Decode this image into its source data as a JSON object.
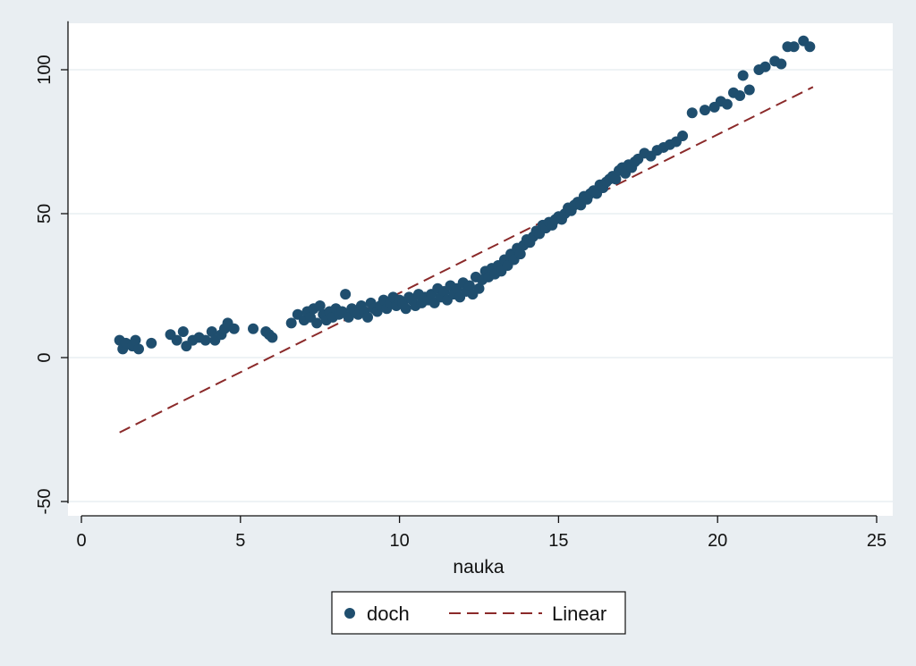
{
  "chart_data": {
    "type": "scatter",
    "title": "",
    "xlabel": "nauka",
    "ylabel": "",
    "xlim": [
      0,
      25
    ],
    "ylim": [
      -50,
      115
    ],
    "x_ticks": [
      0,
      5,
      10,
      15,
      20,
      25
    ],
    "y_ticks": [
      -50,
      0,
      50,
      100
    ],
    "x_tick_labels": [
      "0",
      "5",
      "10",
      "15",
      "20",
      "25"
    ],
    "y_tick_labels": [
      "-50",
      "0",
      "50",
      "100"
    ],
    "grid": true,
    "legend_position": "bottom",
    "colors": {
      "points": "#1f4e6e",
      "fit": "#8b2a2a",
      "background": "#e9eef2",
      "plot": "#ffffff",
      "grid": "#e4ecef"
    },
    "series": [
      {
        "name": "doch",
        "kind": "scatter",
        "points": [
          [
            1.2,
            6
          ],
          [
            1.3,
            3
          ],
          [
            1.4,
            5
          ],
          [
            1.6,
            4
          ],
          [
            1.7,
            6
          ],
          [
            1.8,
            3
          ],
          [
            2.2,
            5
          ],
          [
            2.8,
            8
          ],
          [
            3.0,
            6
          ],
          [
            3.2,
            9
          ],
          [
            3.3,
            4
          ],
          [
            3.5,
            6
          ],
          [
            3.7,
            7
          ],
          [
            3.9,
            6
          ],
          [
            4.1,
            9
          ],
          [
            4.2,
            6
          ],
          [
            4.4,
            8
          ],
          [
            4.5,
            10
          ],
          [
            4.6,
            12
          ],
          [
            4.8,
            10
          ],
          [
            5.4,
            10
          ],
          [
            5.8,
            9
          ],
          [
            5.9,
            8
          ],
          [
            6.0,
            7
          ],
          [
            6.6,
            12
          ],
          [
            6.8,
            15
          ],
          [
            7.0,
            13
          ],
          [
            7.1,
            16
          ],
          [
            7.2,
            14
          ],
          [
            7.3,
            17
          ],
          [
            7.4,
            12
          ],
          [
            7.5,
            18
          ],
          [
            7.6,
            15
          ],
          [
            7.7,
            13
          ],
          [
            7.8,
            16
          ],
          [
            7.9,
            14
          ],
          [
            8.0,
            17
          ],
          [
            8.1,
            15
          ],
          [
            8.2,
            16
          ],
          [
            8.3,
            22
          ],
          [
            8.4,
            14
          ],
          [
            8.5,
            17
          ],
          [
            8.6,
            16
          ],
          [
            8.7,
            15
          ],
          [
            8.8,
            18
          ],
          [
            8.9,
            16
          ],
          [
            9.0,
            14
          ],
          [
            9.1,
            19
          ],
          [
            9.2,
            17
          ],
          [
            9.3,
            16
          ],
          [
            9.4,
            18
          ],
          [
            9.5,
            20
          ],
          [
            9.6,
            17
          ],
          [
            9.7,
            19
          ],
          [
            9.8,
            21
          ],
          [
            9.9,
            18
          ],
          [
            10.0,
            20
          ],
          [
            10.1,
            19
          ],
          [
            10.2,
            17
          ],
          [
            10.3,
            21
          ],
          [
            10.4,
            20
          ],
          [
            10.5,
            18
          ],
          [
            10.6,
            22
          ],
          [
            10.7,
            19
          ],
          [
            10.8,
            21
          ],
          [
            10.9,
            20
          ],
          [
            11.0,
            22
          ],
          [
            11.1,
            19
          ],
          [
            11.2,
            24
          ],
          [
            11.3,
            21
          ],
          [
            11.4,
            23
          ],
          [
            11.5,
            20
          ],
          [
            11.6,
            25
          ],
          [
            11.7,
            22
          ],
          [
            11.8,
            24
          ],
          [
            11.9,
            21
          ],
          [
            12.0,
            26
          ],
          [
            12.1,
            23
          ],
          [
            12.2,
            25
          ],
          [
            12.3,
            22
          ],
          [
            12.4,
            28
          ],
          [
            12.5,
            24
          ],
          [
            12.6,
            27
          ],
          [
            12.7,
            30
          ],
          [
            12.8,
            28
          ],
          [
            12.9,
            31
          ],
          [
            13.0,
            29
          ],
          [
            13.1,
            32
          ],
          [
            13.2,
            30
          ],
          [
            13.3,
            34
          ],
          [
            13.4,
            32
          ],
          [
            13.5,
            36
          ],
          [
            13.6,
            34
          ],
          [
            13.7,
            38
          ],
          [
            13.8,
            36
          ],
          [
            13.9,
            39
          ],
          [
            14.0,
            41
          ],
          [
            14.1,
            40
          ],
          [
            14.2,
            42
          ],
          [
            14.3,
            44
          ],
          [
            14.4,
            43
          ],
          [
            14.5,
            46
          ],
          [
            14.6,
            45
          ],
          [
            14.7,
            47
          ],
          [
            14.8,
            46
          ],
          [
            14.9,
            48
          ],
          [
            15.0,
            49
          ],
          [
            15.1,
            48
          ],
          [
            15.2,
            50
          ],
          [
            15.3,
            52
          ],
          [
            15.4,
            51
          ],
          [
            15.5,
            53
          ],
          [
            15.6,
            54
          ],
          [
            15.7,
            53
          ],
          [
            15.8,
            56
          ],
          [
            15.9,
            55
          ],
          [
            16.0,
            57
          ],
          [
            16.1,
            58
          ],
          [
            16.2,
            57
          ],
          [
            16.3,
            60
          ],
          [
            16.4,
            59
          ],
          [
            16.5,
            61
          ],
          [
            16.6,
            62
          ],
          [
            16.7,
            63
          ],
          [
            16.8,
            62
          ],
          [
            16.9,
            65
          ],
          [
            17.0,
            66
          ],
          [
            17.1,
            64
          ],
          [
            17.2,
            67
          ],
          [
            17.3,
            66
          ],
          [
            17.4,
            68
          ],
          [
            17.5,
            69
          ],
          [
            17.7,
            71
          ],
          [
            17.9,
            70
          ],
          [
            18.1,
            72
          ],
          [
            18.3,
            73
          ],
          [
            18.5,
            74
          ],
          [
            18.7,
            75
          ],
          [
            18.9,
            77
          ],
          [
            19.2,
            85
          ],
          [
            19.6,
            86
          ],
          [
            19.9,
            87
          ],
          [
            20.1,
            89
          ],
          [
            20.3,
            88
          ],
          [
            20.5,
            92
          ],
          [
            20.7,
            91
          ],
          [
            20.8,
            98
          ],
          [
            21.0,
            93
          ],
          [
            21.3,
            100
          ],
          [
            21.5,
            101
          ],
          [
            21.8,
            103
          ],
          [
            22.0,
            102
          ],
          [
            22.2,
            108
          ],
          [
            22.4,
            108
          ],
          [
            22.7,
            110
          ],
          [
            22.9,
            108
          ]
        ]
      },
      {
        "name": "Linear",
        "kind": "line",
        "points": [
          [
            1.2,
            -26
          ],
          [
            23.0,
            94
          ]
        ]
      }
    ]
  }
}
